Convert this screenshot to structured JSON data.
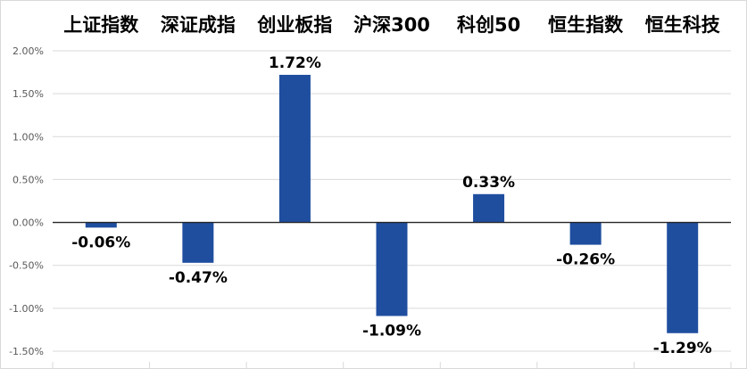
{
  "chart_data": {
    "type": "bar",
    "title": "",
    "xlabel": "",
    "ylabel": "",
    "categories": [
      "上证指数",
      "深证成指",
      "创业板指",
      "沪深300",
      "科创50",
      "恒生指数",
      "恒生科技"
    ],
    "values": [
      -0.06,
      -0.47,
      1.72,
      -1.09,
      0.33,
      -0.26,
      -1.29
    ],
    "data_labels": [
      "-0.06%",
      "-0.47%",
      "1.72%",
      "-1.09%",
      "0.33%",
      "-0.26%",
      "-1.29%"
    ],
    "y_ticks": [
      2.0,
      1.5,
      1.0,
      0.5,
      0.0,
      -0.5,
      -1.0,
      -1.5
    ],
    "y_tick_labels": [
      "2.00%",
      "1.50%",
      "1.00%",
      "0.50%",
      "0.00%",
      "-0.50%",
      "-1.00%",
      "-1.50%"
    ],
    "ylim": [
      -1.5,
      2.0
    ],
    "category_axis_position": "top",
    "grid": true,
    "legend": false,
    "bar_color": "#1f4e9f"
  }
}
